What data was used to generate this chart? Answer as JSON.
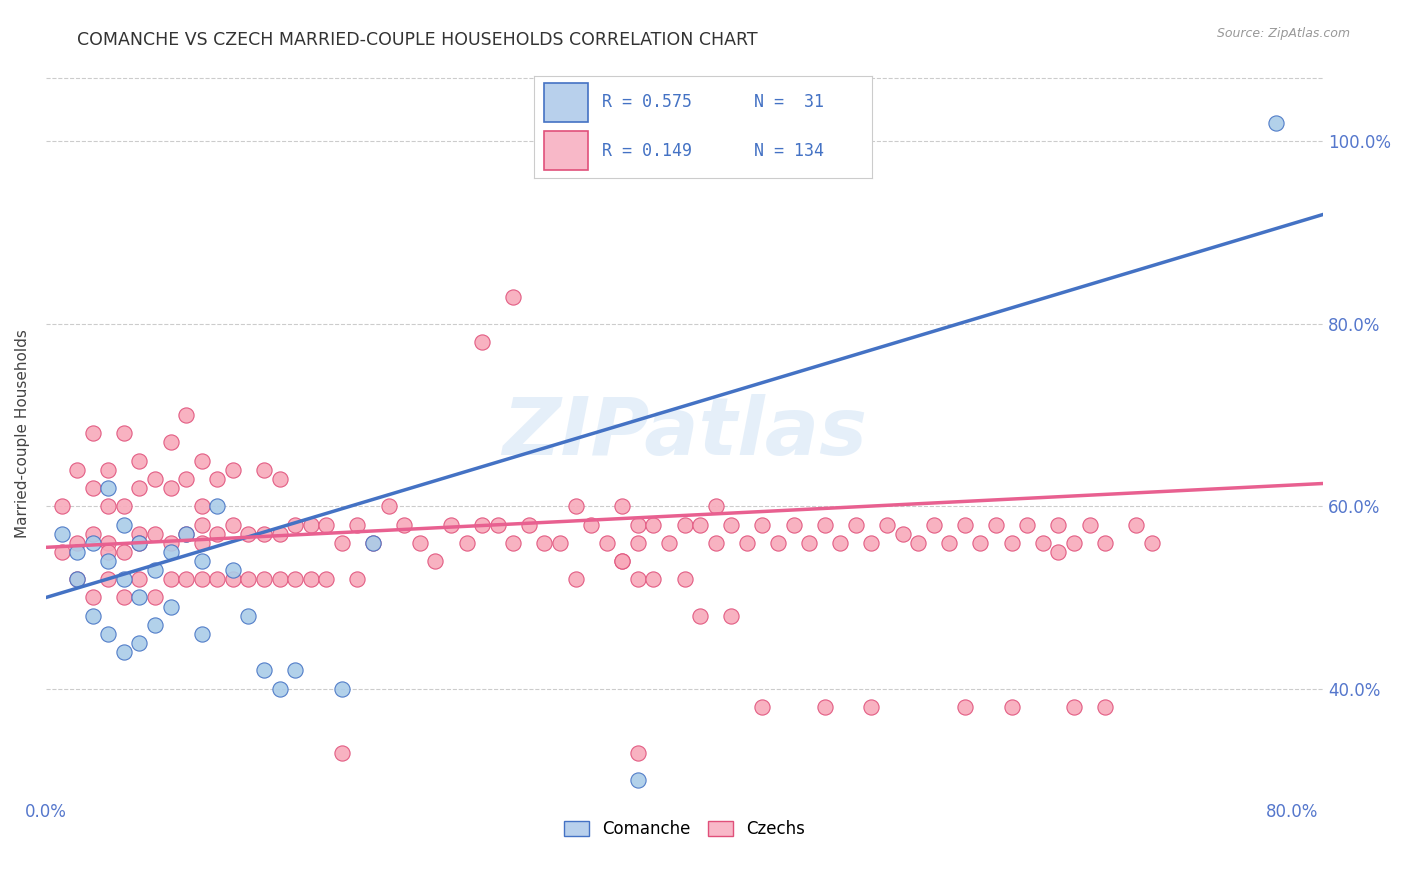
{
  "title": "COMANCHE VS CZECH MARRIED-COUPLE HOUSEHOLDS CORRELATION CHART",
  "source": "Source: ZipAtlas.com",
  "ylabel": "Married-couple Households",
  "xlim": [
    0.0,
    0.82
  ],
  "ylim": [
    0.28,
    1.08
  ],
  "x_tick_vals": [
    0.0,
    0.8
  ],
  "x_tick_labels": [
    "0.0%",
    "80.0%"
  ],
  "y_tick_vals": [
    0.4,
    0.6,
    0.8,
    1.0
  ],
  "y_tick_labels": [
    "40.0%",
    "60.0%",
    "80.0%",
    "100.0%"
  ],
  "comanche_dot_color": "#AACCE8",
  "comanche_edge_color": "#4472C4",
  "czech_dot_color": "#F8AABB",
  "czech_edge_color": "#E0507A",
  "comanche_line_color": "#4472C4",
  "czech_line_color": "#E86090",
  "legend_blue_fill": "#B8D0EC",
  "legend_pink_fill": "#F8B8C8",
  "comanche_R": 0.575,
  "comanche_N": 31,
  "czech_R": 0.149,
  "czech_N": 134,
  "comanche_line_x0": 0.0,
  "comanche_line_y0": 0.5,
  "comanche_line_x1": 0.82,
  "comanche_line_y1": 0.92,
  "czech_line_x0": 0.0,
  "czech_line_y0": 0.555,
  "czech_line_x1": 0.82,
  "czech_line_y1": 0.625,
  "comanche_scatter_x": [
    0.01,
    0.02,
    0.02,
    0.03,
    0.03,
    0.04,
    0.04,
    0.04,
    0.05,
    0.05,
    0.05,
    0.06,
    0.06,
    0.06,
    0.07,
    0.07,
    0.08,
    0.08,
    0.09,
    0.1,
    0.1,
    0.11,
    0.12,
    0.13,
    0.14,
    0.15,
    0.16,
    0.19,
    0.21,
    0.38,
    0.79
  ],
  "comanche_scatter_y": [
    0.57,
    0.55,
    0.52,
    0.56,
    0.48,
    0.54,
    0.62,
    0.46,
    0.58,
    0.52,
    0.44,
    0.56,
    0.5,
    0.45,
    0.53,
    0.47,
    0.55,
    0.49,
    0.57,
    0.54,
    0.46,
    0.6,
    0.53,
    0.48,
    0.42,
    0.4,
    0.42,
    0.4,
    0.56,
    0.3,
    1.02
  ],
  "czech_scatter_x": [
    0.01,
    0.01,
    0.02,
    0.02,
    0.02,
    0.03,
    0.03,
    0.03,
    0.03,
    0.04,
    0.04,
    0.04,
    0.04,
    0.04,
    0.05,
    0.05,
    0.05,
    0.05,
    0.06,
    0.06,
    0.06,
    0.06,
    0.06,
    0.07,
    0.07,
    0.07,
    0.08,
    0.08,
    0.08,
    0.08,
    0.09,
    0.09,
    0.09,
    0.09,
    0.1,
    0.1,
    0.1,
    0.1,
    0.1,
    0.11,
    0.11,
    0.11,
    0.12,
    0.12,
    0.12,
    0.13,
    0.13,
    0.14,
    0.14,
    0.14,
    0.15,
    0.15,
    0.15,
    0.16,
    0.16,
    0.17,
    0.17,
    0.18,
    0.18,
    0.19,
    0.2,
    0.2,
    0.21,
    0.22,
    0.23,
    0.24,
    0.25,
    0.26,
    0.27,
    0.28,
    0.28,
    0.29,
    0.3,
    0.3,
    0.31,
    0.32,
    0.33,
    0.34,
    0.34,
    0.35,
    0.36,
    0.37,
    0.37,
    0.38,
    0.38,
    0.39,
    0.4,
    0.41,
    0.41,
    0.42,
    0.43,
    0.43,
    0.44,
    0.45,
    0.46,
    0.47,
    0.48,
    0.49,
    0.5,
    0.51,
    0.52,
    0.53,
    0.54,
    0.55,
    0.56,
    0.57,
    0.58,
    0.59,
    0.6,
    0.61,
    0.62,
    0.63,
    0.64,
    0.65,
    0.65,
    0.66,
    0.67,
    0.68,
    0.7,
    0.71,
    0.37,
    0.38,
    0.39,
    0.42,
    0.44,
    0.46,
    0.5,
    0.53,
    0.59,
    0.62,
    0.66,
    0.68,
    0.19,
    0.38
  ],
  "czech_scatter_y": [
    0.55,
    0.6,
    0.52,
    0.56,
    0.64,
    0.5,
    0.57,
    0.62,
    0.68,
    0.52,
    0.56,
    0.6,
    0.55,
    0.64,
    0.5,
    0.55,
    0.6,
    0.68,
    0.52,
    0.57,
    0.62,
    0.56,
    0.65,
    0.5,
    0.57,
    0.63,
    0.52,
    0.56,
    0.62,
    0.67,
    0.52,
    0.57,
    0.63,
    0.7,
    0.52,
    0.56,
    0.6,
    0.65,
    0.58,
    0.52,
    0.57,
    0.63,
    0.52,
    0.58,
    0.64,
    0.52,
    0.57,
    0.52,
    0.57,
    0.64,
    0.52,
    0.57,
    0.63,
    0.52,
    0.58,
    0.52,
    0.58,
    0.52,
    0.58,
    0.56,
    0.52,
    0.58,
    0.56,
    0.6,
    0.58,
    0.56,
    0.54,
    0.58,
    0.56,
    0.58,
    0.78,
    0.58,
    0.56,
    0.83,
    0.58,
    0.56,
    0.56,
    0.6,
    0.52,
    0.58,
    0.56,
    0.6,
    0.54,
    0.58,
    0.56,
    0.58,
    0.56,
    0.58,
    0.52,
    0.58,
    0.56,
    0.6,
    0.58,
    0.56,
    0.58,
    0.56,
    0.58,
    0.56,
    0.58,
    0.56,
    0.58,
    0.56,
    0.58,
    0.57,
    0.56,
    0.58,
    0.56,
    0.58,
    0.56,
    0.58,
    0.56,
    0.58,
    0.56,
    0.55,
    0.58,
    0.56,
    0.58,
    0.56,
    0.58,
    0.56,
    0.54,
    0.52,
    0.52,
    0.48,
    0.48,
    0.38,
    0.38,
    0.38,
    0.38,
    0.38,
    0.38,
    0.38,
    0.33,
    0.33
  ],
  "watermark": "ZIPatlas",
  "background_color": "#FFFFFF",
  "grid_color": "#CCCCCC",
  "grid_style": "--"
}
